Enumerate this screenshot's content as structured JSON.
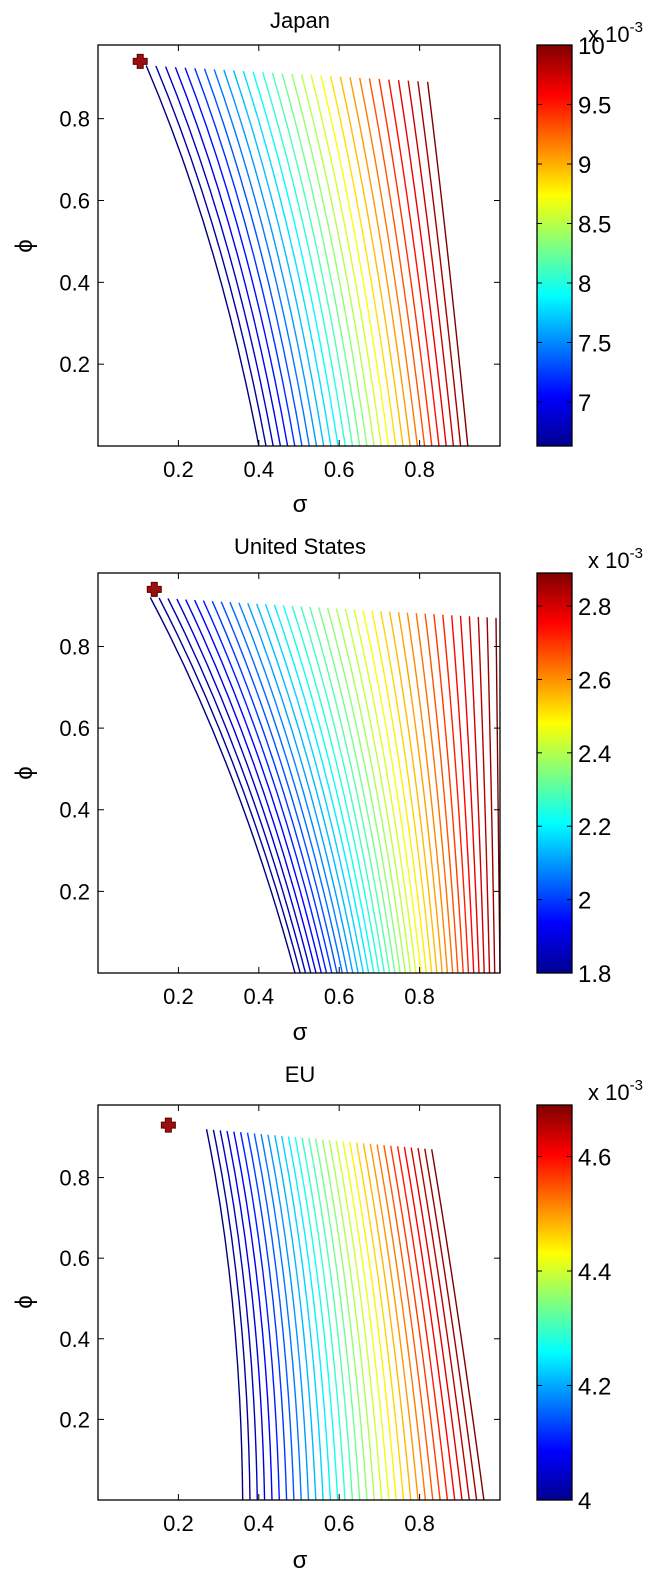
{
  "chart_data": [
    {
      "type": "contour",
      "title": "Japan",
      "xlabel": "σ",
      "ylabel": "ϕ",
      "xlim": [
        0.0,
        1.0
      ],
      "ylim": [
        0.0,
        0.98
      ],
      "xticks": [
        "0.2",
        "0.4",
        "0.6",
        "0.8"
      ],
      "yticks": [
        "0.2",
        "0.4",
        "0.6",
        "0.8"
      ],
      "colorbar": {
        "range": [
          6.63,
          10.0
        ],
        "multiplier": "x 10",
        "exponent": "-3",
        "ticks": [
          "7",
          "7.5",
          "8",
          "8.5",
          "9",
          "9.5",
          "10"
        ]
      },
      "levels": 30,
      "contour_bounds": {
        "top_left": [
          0.12,
          0.93
        ],
        "top_right": [
          0.82,
          0.89
        ],
        "bottom_left": [
          0.4,
          0.0
        ],
        "bottom_right": [
          0.92,
          0.0
        ]
      },
      "optimum_marker": {
        "sigma": 0.105,
        "phi": 0.94
      }
    },
    {
      "type": "contour",
      "title": "United States",
      "xlabel": "σ",
      "ylabel": "ϕ",
      "xlim": [
        0.0,
        1.0
      ],
      "ylim": [
        0.0,
        0.98
      ],
      "xticks": [
        "0.2",
        "0.4",
        "0.6",
        "0.8"
      ],
      "yticks": [
        "0.2",
        "0.4",
        "0.6",
        "0.8"
      ],
      "colorbar": {
        "range": [
          1.8,
          2.89
        ],
        "multiplier": "x 10",
        "exponent": "-3",
        "ticks": [
          "1.8",
          "2",
          "2.2",
          "2.4",
          "2.6",
          "2.8"
        ]
      },
      "levels": 40,
      "contour_bounds": {
        "top_left": [
          0.13,
          0.92
        ],
        "top_right": [
          0.99,
          0.87
        ],
        "bottom_left": [
          0.49,
          0.0
        ],
        "bottom_right": [
          1.0,
          0.0
        ]
      },
      "optimum_marker": {
        "sigma": 0.14,
        "phi": 0.94
      }
    },
    {
      "type": "contour",
      "title": "EU",
      "xlabel": "σ",
      "ylabel": "ϕ",
      "xlim": [
        0.0,
        1.0
      ],
      "ylim": [
        0.0,
        0.98
      ],
      "xticks": [
        "0.2",
        "0.4",
        "0.6",
        "0.8"
      ],
      "yticks": [
        "0.2",
        "0.4",
        "0.6",
        "0.8"
      ],
      "colorbar": {
        "range": [
          4.0,
          4.69
        ],
        "multiplier": "x 10",
        "exponent": "-3",
        "ticks": [
          "4",
          "4.2",
          "4.4",
          "4.6"
        ]
      },
      "levels": 34,
      "contour_bounds": {
        "top_left": [
          0.27,
          0.92
        ],
        "top_right": [
          0.83,
          0.87
        ],
        "bottom_left": [
          0.36,
          0.0
        ],
        "bottom_right": [
          0.96,
          0.0
        ]
      },
      "optimum_marker": {
        "sigma": 0.175,
        "phi": 0.93
      }
    }
  ]
}
